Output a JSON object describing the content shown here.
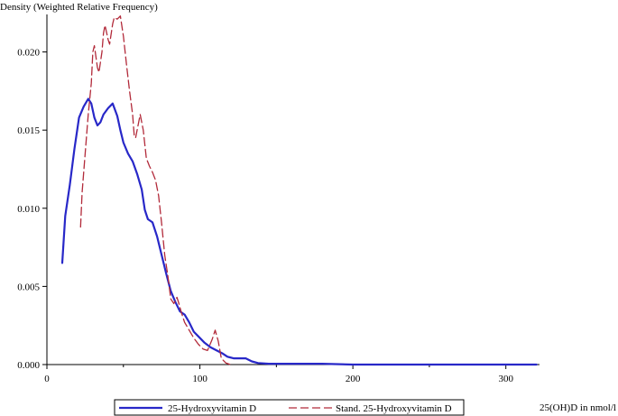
{
  "chart_data": {
    "type": "line",
    "title": "",
    "ylabel": "Density (Weighted Relative Frequency)",
    "xlabel": "25(OH)D in nmol/l",
    "xlim": [
      0,
      322
    ],
    "ylim": [
      0,
      0.0224
    ],
    "xticks": [
      0,
      100,
      200,
      300
    ],
    "xtick_labels": [
      "0",
      "100",
      "200",
      "300"
    ],
    "yticks": [
      0,
      0.005,
      0.01,
      0.015,
      0.02
    ],
    "ytick_labels": [
      "0.000",
      "0.005",
      "0.010",
      "0.015",
      "0.020"
    ],
    "grid": false,
    "legend_position": "bottom",
    "series": [
      {
        "name": "25-Hydroxyvitamin D",
        "color": "#2828c8",
        "style": "solid",
        "points": [
          [
            10,
            0.0065
          ],
          [
            12,
            0.0095
          ],
          [
            15,
            0.0115
          ],
          [
            18,
            0.0138
          ],
          [
            21,
            0.0158
          ],
          [
            24,
            0.0165
          ],
          [
            27,
            0.017
          ],
          [
            29,
            0.0167
          ],
          [
            31,
            0.0158
          ],
          [
            33,
            0.0153
          ],
          [
            35,
            0.0155
          ],
          [
            37,
            0.016
          ],
          [
            40,
            0.0164
          ],
          [
            43,
            0.0167
          ],
          [
            46,
            0.0159
          ],
          [
            48,
            0.015
          ],
          [
            50,
            0.0142
          ],
          [
            53,
            0.0135
          ],
          [
            56,
            0.013
          ],
          [
            59,
            0.0122
          ],
          [
            62,
            0.0112
          ],
          [
            64,
            0.0099
          ],
          [
            66,
            0.0093
          ],
          [
            69,
            0.0091
          ],
          [
            72,
            0.0082
          ],
          [
            75,
            0.007
          ],
          [
            78,
            0.0058
          ],
          [
            81,
            0.0047
          ],
          [
            84,
            0.004
          ],
          [
            87,
            0.0034
          ],
          [
            90,
            0.0032
          ],
          [
            93,
            0.0027
          ],
          [
            96,
            0.0021
          ],
          [
            99,
            0.0018
          ],
          [
            103,
            0.0014
          ],
          [
            107,
            0.0011
          ],
          [
            111,
            0.0009
          ],
          [
            115,
            0.0007
          ],
          [
            118,
            0.0005
          ],
          [
            122,
            0.0004
          ],
          [
            126,
            0.0004
          ],
          [
            130,
            0.0004
          ],
          [
            134,
            0.0002
          ],
          [
            138,
            0.0001
          ],
          [
            145,
            5e-05
          ],
          [
            160,
            5e-05
          ],
          [
            180,
            5e-05
          ],
          [
            200,
            0.0
          ],
          [
            230,
            0.0
          ],
          [
            260,
            0.0
          ],
          [
            290,
            0.0
          ],
          [
            320,
            0.0
          ]
        ]
      },
      {
        "name": "Stand. 25-Hydroxyvitamin D",
        "color": "#b22a3a",
        "style": "dashed",
        "points": [
          [
            22,
            0.0088
          ],
          [
            23,
            0.011
          ],
          [
            25,
            0.0135
          ],
          [
            27,
            0.016
          ],
          [
            29,
            0.018
          ],
          [
            30,
            0.02
          ],
          [
            31,
            0.0204
          ],
          [
            33,
            0.019
          ],
          [
            34,
            0.0187
          ],
          [
            36,
            0.02
          ],
          [
            37,
            0.0212
          ],
          [
            38,
            0.0217
          ],
          [
            40,
            0.0208
          ],
          [
            41,
            0.0205
          ],
          [
            43,
            0.0218
          ],
          [
            44,
            0.0222
          ],
          [
            46,
            0.0221
          ],
          [
            48,
            0.0223
          ],
          [
            50,
            0.021
          ],
          [
            52,
            0.0192
          ],
          [
            54,
            0.0175
          ],
          [
            56,
            0.016
          ],
          [
            57,
            0.0147
          ],
          [
            58,
            0.0145
          ],
          [
            60,
            0.0155
          ],
          [
            61,
            0.016
          ],
          [
            63,
            0.015
          ],
          [
            65,
            0.0132
          ],
          [
            67,
            0.0127
          ],
          [
            69,
            0.0123
          ],
          [
            71,
            0.0118
          ],
          [
            73,
            0.0108
          ],
          [
            75,
            0.009
          ],
          [
            77,
            0.007
          ],
          [
            79,
            0.0057
          ],
          [
            81,
            0.0042
          ],
          [
            83,
            0.0039
          ],
          [
            85,
            0.0043
          ],
          [
            86,
            0.004
          ],
          [
            88,
            0.0033
          ],
          [
            90,
            0.0027
          ],
          [
            93,
            0.0022
          ],
          [
            96,
            0.0017
          ],
          [
            99,
            0.0013
          ],
          [
            102,
            0.001
          ],
          [
            105,
            0.0009
          ],
          [
            108,
            0.0016
          ],
          [
            110,
            0.0022
          ],
          [
            112,
            0.0015
          ],
          [
            114,
            0.0004
          ],
          [
            117,
            0.0001
          ],
          [
            120,
            0.0
          ]
        ]
      }
    ]
  }
}
